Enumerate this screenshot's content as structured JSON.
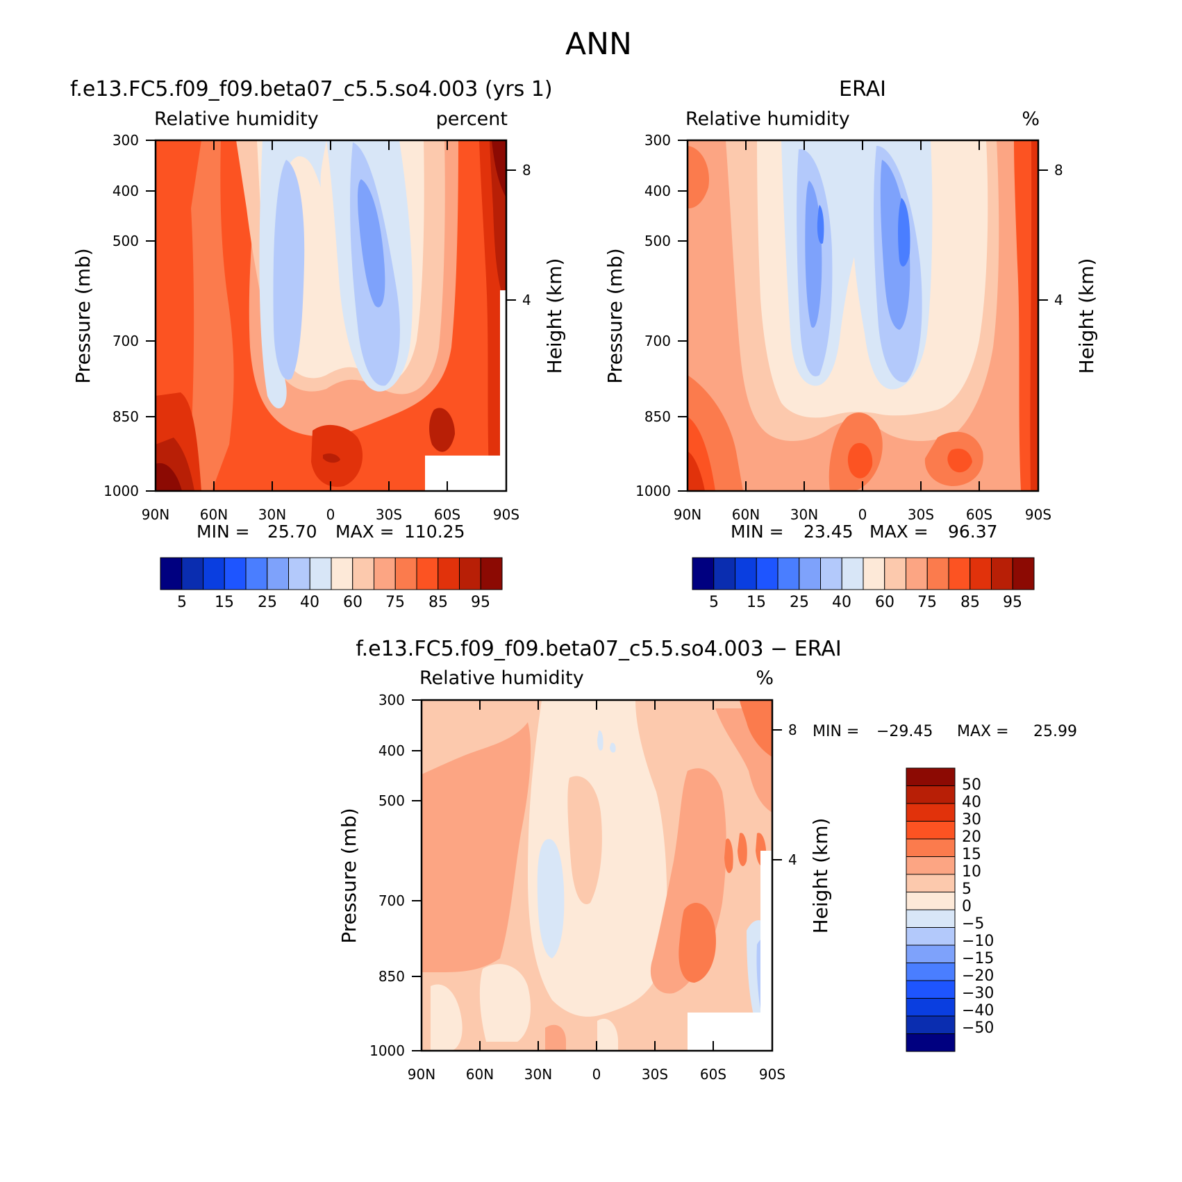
{
  "figure_title": "ANN",
  "chart_data": [
    {
      "type": "heatmap",
      "id": "model",
      "title": "f.e13.FC5.f09_f09.beta07_c5.5.so4.003 (yrs 1)",
      "left_label": "Relative humidity",
      "right_label": "percent",
      "ylabel": "Pressure (mb)",
      "y2label": "Height (km)",
      "x_ticks": [
        "90N",
        "60N",
        "30N",
        "0",
        "30S",
        "60S",
        "90S"
      ],
      "y_ticks": [
        "300",
        "400",
        "500",
        "700",
        "850",
        "1000"
      ],
      "y2_ticks": [
        "8",
        "4"
      ],
      "min_label": "MIN =",
      "min_value": "25.70",
      "max_label": "MAX =",
      "max_value": "110.25",
      "colorbar_labels": [
        "5",
        "15",
        "25",
        "40",
        "60",
        "75",
        "85",
        "95"
      ],
      "colors": [
        "#000080",
        "#0a2db0",
        "#0a3ee0",
        "#1e55ff",
        "#4a7eff",
        "#7ea2fb",
        "#b3c9fb",
        "#d8e6f7",
        "#fde9d8",
        "#fcc9ad",
        "#fca583",
        "#fb7b4d",
        "#fc5322",
        "#e1320b",
        "#b81f06",
        "#8c0a03"
      ]
    },
    {
      "type": "heatmap",
      "id": "obs",
      "title": "ERAI",
      "left_label": "Relative humidity",
      "right_label": "%",
      "ylabel": "Pressure (mb)",
      "y2label": "Height (km)",
      "x_ticks": [
        "90N",
        "60N",
        "30N",
        "0",
        "30S",
        "60S",
        "90S"
      ],
      "y_ticks": [
        "300",
        "400",
        "500",
        "700",
        "850",
        "1000"
      ],
      "y2_ticks": [
        "8",
        "4"
      ],
      "min_label": "MIN =",
      "min_value": "23.45",
      "max_label": "MAX =",
      "max_value": "96.37",
      "colorbar_labels": [
        "5",
        "15",
        "25",
        "40",
        "60",
        "75",
        "85",
        "95"
      ],
      "colors": [
        "#000080",
        "#0a2db0",
        "#0a3ee0",
        "#1e55ff",
        "#4a7eff",
        "#7ea2fb",
        "#b3c9fb",
        "#d8e6f7",
        "#fde9d8",
        "#fcc9ad",
        "#fca583",
        "#fb7b4d",
        "#fc5322",
        "#e1320b",
        "#b81f06",
        "#8c0a03"
      ]
    },
    {
      "type": "heatmap",
      "id": "diff",
      "title": "f.e13.FC5.f09_f09.beta07_c5.5.so4.003 - ERAI",
      "left_label": "Relative humidity",
      "right_label": "%",
      "ylabel": "Pressure (mb)",
      "y2label": "Height (km)",
      "x_ticks": [
        "90N",
        "60N",
        "30N",
        "0",
        "30S",
        "60S",
        "90S"
      ],
      "y_ticks": [
        "300",
        "400",
        "500",
        "700",
        "850",
        "1000"
      ],
      "y2_ticks": [
        "8",
        "4"
      ],
      "min_label": "MIN =",
      "min_value": "-29.45",
      "max_label": "MAX =",
      "max_value": "25.99",
      "colorbar_labels": [
        "50",
        "40",
        "30",
        "20",
        "15",
        "10",
        "5",
        "0",
        "-5",
        "-10",
        "-15",
        "-20",
        "-30",
        "-40",
        "-50"
      ],
      "colors": [
        "#8c0a03",
        "#b81f06",
        "#e1320b",
        "#fc5322",
        "#fb7b4d",
        "#fca583",
        "#fcc9ad",
        "#fde9d8",
        "#d8e6f7",
        "#b3c9fb",
        "#7ea2fb",
        "#4a7eff",
        "#1e55ff",
        "#0a3ee0",
        "#0a2db0",
        "#000080"
      ]
    }
  ]
}
